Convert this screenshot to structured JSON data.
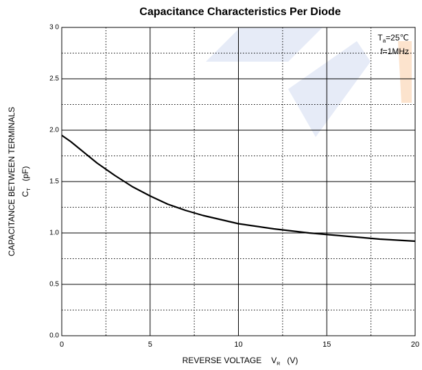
{
  "chart_data": {
    "type": "line",
    "title": "Capacitance Characteristics Per Diode",
    "x_label": {
      "text": "REVERSE VOLTAGE",
      "symbol": "V",
      "sub": "R",
      "unit": "(V)"
    },
    "y_label": {
      "text": "CAPACITANCE BETWEEN TERMINALS",
      "symbol": "C",
      "sub": "T",
      "unit": "(pF)"
    },
    "annotations": [
      {
        "text": "T",
        "sub": "a",
        "rest": "=25℃"
      },
      {
        "text": "f=1MHz"
      }
    ],
    "x": [
      0,
      0.5,
      1,
      2,
      3,
      4,
      5,
      6,
      7,
      8,
      10,
      12,
      14,
      16,
      18,
      20
    ],
    "series": [
      {
        "color": "#000000",
        "values": [
          1.95,
          1.89,
          1.82,
          1.68,
          1.56,
          1.45,
          1.36,
          1.28,
          1.22,
          1.17,
          1.09,
          1.04,
          1.0,
          0.97,
          0.94,
          0.92
        ]
      }
    ],
    "xlim": [
      0,
      20
    ],
    "ylim": [
      0,
      3
    ],
    "xticks": [
      0,
      5,
      10,
      15,
      20
    ],
    "yticks": [
      {
        "value": 0,
        "label": "0.0"
      },
      0.5,
      {
        "value": 1,
        "label": "1.0"
      },
      1.5,
      {
        "value": 2,
        "label": "2.0"
      },
      2.5,
      {
        "value": 3,
        "label": "3 0"
      }
    ],
    "x_minor_grid": [
      2.5,
      7.5,
      12.5,
      17.5
    ],
    "y_minor_grid": [
      0.25,
      0.75,
      1.25,
      1.75,
      2.25,
      2.75
    ],
    "grid": true
  }
}
